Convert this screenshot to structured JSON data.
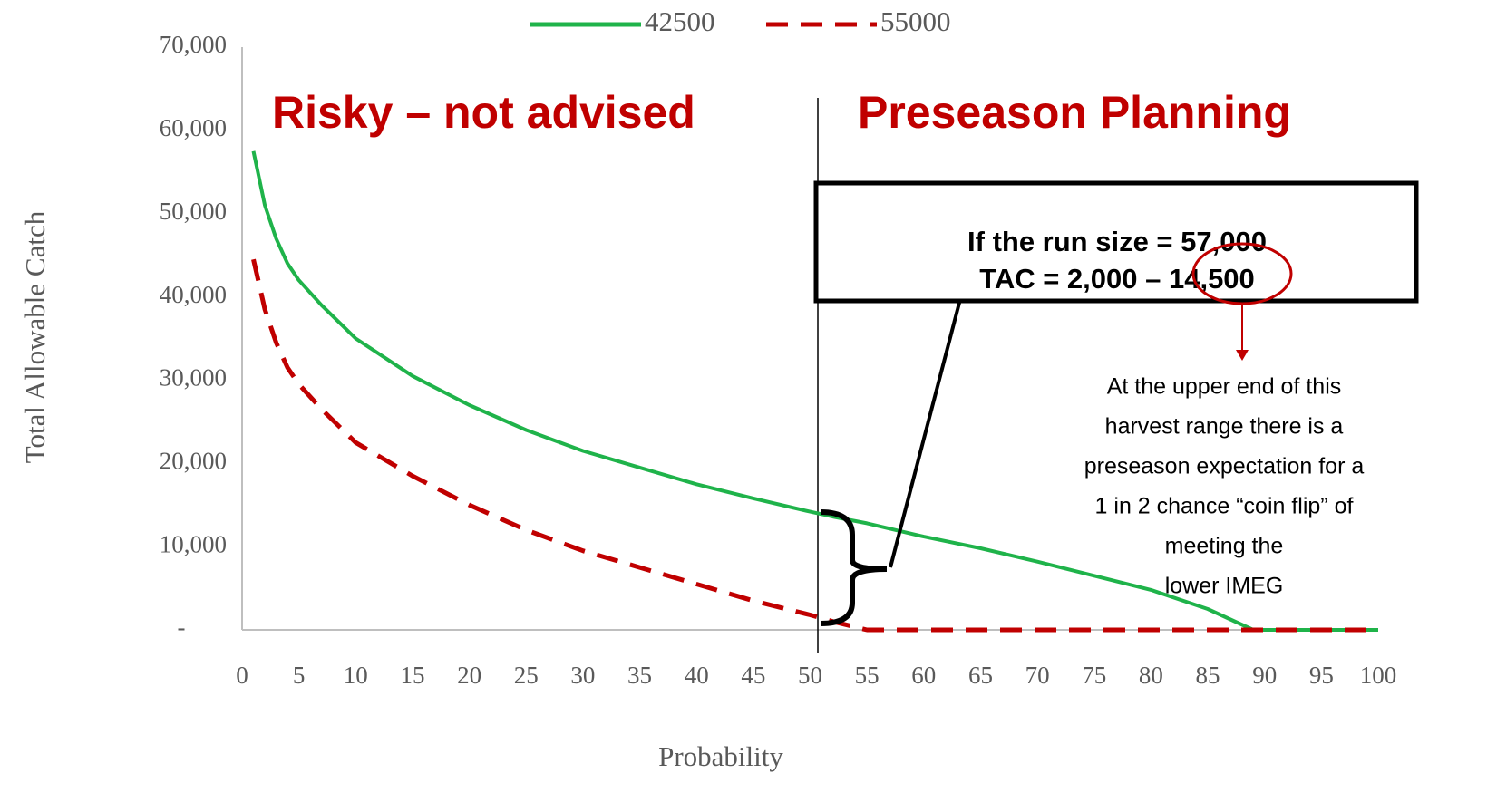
{
  "chart_data": {
    "type": "line",
    "x_label": "Probability",
    "y_label": "Total Allowable Catch",
    "x": [
      1,
      2,
      3,
      4,
      5,
      7,
      10,
      15,
      20,
      25,
      30,
      35,
      40,
      45,
      50,
      52,
      55,
      60,
      65,
      70,
      75,
      80,
      85,
      89,
      90,
      95,
      100
    ],
    "series": [
      {
        "name": "42500",
        "color": "#1fb34a",
        "dash": false,
        "values": [
          57500,
          51000,
          47000,
          44000,
          42000,
          39000,
          35000,
          30500,
          27000,
          24000,
          21500,
          19500,
          17500,
          15800,
          14200,
          13600,
          12800,
          11200,
          9800,
          8200,
          6500,
          4800,
          2500,
          0,
          0,
          0,
          0
        ]
      },
      {
        "name": "55000",
        "color": "#c00000",
        "dash": true,
        "values": [
          44500,
          38500,
          34500,
          31500,
          29500,
          26500,
          22500,
          18500,
          15000,
          12000,
          9500,
          7500,
          5500,
          3500,
          1800,
          1000,
          0,
          0,
          0,
          0,
          0,
          0,
          0,
          0,
          0,
          0,
          0
        ]
      }
    ],
    "xlim": [
      0,
      100
    ],
    "xticks": [
      0,
      5,
      10,
      15,
      20,
      25,
      30,
      35,
      40,
      45,
      50,
      55,
      60,
      65,
      70,
      75,
      80,
      85,
      90,
      95,
      100
    ],
    "ylim": [
      0,
      70000
    ],
    "yticks": [
      {
        "value": 0,
        "label": "-"
      },
      {
        "value": 10000,
        "label": "10,000"
      },
      {
        "value": 20000,
        "label": "20,000"
      },
      {
        "value": 30000,
        "label": "30,000"
      },
      {
        "value": 40000,
        "label": "40,000"
      },
      {
        "value": 50000,
        "label": "50,000"
      },
      {
        "value": 60000,
        "label": "60,000"
      },
      {
        "value": 70000,
        "label": "70,000"
      }
    ],
    "grid": false,
    "legend": "top",
    "annotations": {
      "left_region": "Risky – not advised",
      "right_region": "Preseason Planning",
      "box_line_1": "If the run size = 57,000",
      "box_line_2": "TAC = 2,000 – 14,500",
      "note_lines": [
        "At the upper end of this",
        "harvest range there is a",
        "preseason expectation for a",
        "1 in 2 chance “coin flip” of",
        "meeting the",
        "lower IMEG"
      ]
    }
  }
}
